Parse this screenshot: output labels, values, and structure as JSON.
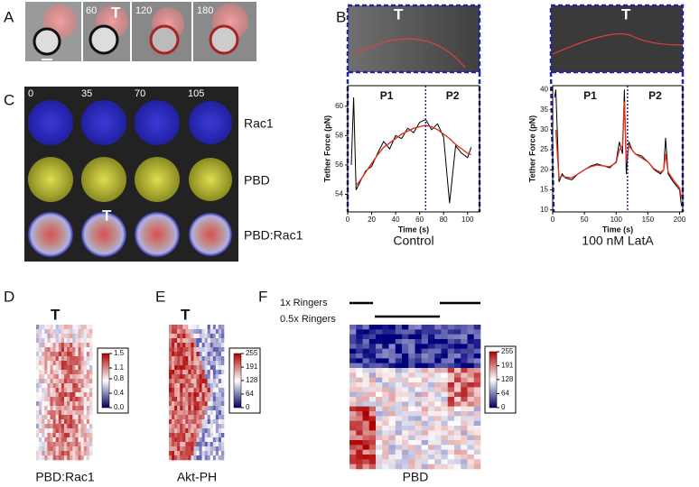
{
  "panels": {
    "A": {
      "label": "A",
      "marker": "T",
      "times": [
        "60",
        "120",
        "180"
      ]
    },
    "B": {
      "label": "B",
      "marker_left": "T",
      "marker_right": "T"
    },
    "C": {
      "label": "C",
      "times": [
        "0",
        "35",
        "70",
        "105"
      ],
      "marker": "T",
      "rows": [
        "Rac1",
        "PBD",
        "PBD:Rac1"
      ]
    },
    "D": {
      "label": "D",
      "marker": "T",
      "caption": "PBD:Rac1",
      "colorbar_lim": [
        0,
        1.5
      ],
      "colorbar_ticks": [
        1.5,
        1.1,
        0.8,
        0.4,
        {
          "value": 0,
          "label": "0.0"
        }
      ]
    },
    "E": {
      "label": "E",
      "marker": "T",
      "caption": "Akt-PH",
      "colorbar_lim": [
        0,
        255
      ],
      "colorbar_ticks": [
        255,
        191,
        128,
        64,
        0
      ]
    },
    "F": {
      "label": "F",
      "conditions": [
        "1x Ringers",
        "0.5x Ringers"
      ],
      "caption": "PBD",
      "colorbar_lim": [
        0,
        255
      ],
      "colorbar_ticks": [
        255,
        191,
        128,
        64,
        0
      ]
    }
  },
  "chart_data": [
    {
      "type": "line",
      "caption": "Control",
      "xlabel": "Time (s)",
      "ylabel": "Tether Force (pN)",
      "phases": [
        "P1",
        "P2"
      ],
      "divider_x": 65,
      "xlim": [
        0,
        110
      ],
      "ylim": [
        52.8,
        61.4
      ],
      "xticks": [
        0,
        20,
        40,
        60,
        80,
        100
      ],
      "yticks": [
        54,
        56,
        58,
        60
      ],
      "x": [
        3,
        5,
        7,
        10,
        15,
        20,
        25,
        30,
        35,
        40,
        45,
        50,
        55,
        60,
        65,
        70,
        75,
        80,
        85,
        90,
        95,
        100,
        103
      ],
      "series": [
        {
          "color": "#000000",
          "values": [
            56,
            60.6,
            54.3,
            54.8,
            55.6,
            55.9,
            56.8,
            57.6,
            57.1,
            58,
            57.8,
            58.5,
            58.2,
            58.9,
            59.1,
            58.4,
            58.8,
            57.9,
            53.4,
            57.3,
            56.8,
            56.5,
            57.2
          ]
        },
        {
          "color": "#e03020",
          "values": [
            null,
            null,
            54.6,
            54.9,
            55.5,
            56.1,
            56.7,
            57.2,
            57.5,
            57.8,
            58.1,
            58.3,
            58.5,
            58.6,
            58.7,
            58.6,
            58.4,
            58.1,
            57.8,
            57.4,
            57.1,
            56.8,
            56.7
          ]
        }
      ]
    },
    {
      "type": "line",
      "caption": "100 nM LatA",
      "xlabel": "Time (s)",
      "ylabel": "Tether Force (pN)",
      "phases": [
        "P1",
        "P2"
      ],
      "divider_x": 118,
      "xlim": [
        0,
        205
      ],
      "ylim": [
        9.5,
        41
      ],
      "xticks": [
        0,
        50,
        100,
        150,
        200
      ],
      "yticks": [
        10,
        15,
        20,
        25,
        30,
        35,
        40
      ],
      "x": [
        3,
        5,
        10,
        15,
        20,
        30,
        40,
        50,
        60,
        70,
        80,
        90,
        100,
        105,
        110,
        113,
        116,
        120,
        125,
        130,
        140,
        150,
        160,
        170,
        175,
        178,
        182,
        190,
        195,
        200,
        203
      ],
      "series": [
        {
          "color": "#000000",
          "values": [
            38,
            40,
            17,
            19,
            18,
            17.5,
            19,
            20,
            21,
            21.5,
            21,
            20.5,
            22,
            27,
            24,
            40,
            19,
            27,
            25,
            24,
            23.5,
            22,
            20,
            19,
            20,
            28,
            19,
            17,
            16,
            15,
            11
          ]
        },
        {
          "color": "#e03020",
          "values": [
            null,
            30,
            18,
            18.5,
            18.2,
            18,
            19,
            20,
            20.8,
            21.2,
            21,
            20.8,
            21.8,
            25,
            26,
            37,
            22,
            26,
            25,
            24,
            23,
            22,
            20.2,
            19.4,
            20,
            24,
            19.5,
            17.5,
            16.5,
            15.5,
            13
          ]
        }
      ]
    }
  ]
}
